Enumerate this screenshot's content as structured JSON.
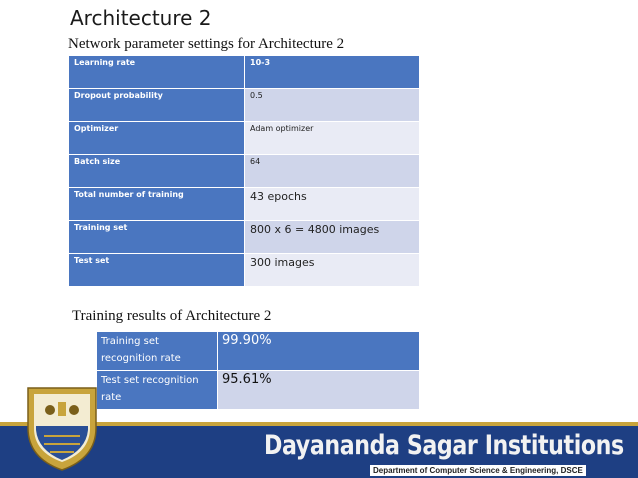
{
  "slide": {
    "title": "Architecture 2",
    "subtitle": "Network parameter settings for Architecture 2",
    "results_title": "Training results of Architecture 2"
  },
  "params": [
    {
      "label": "Learning rate",
      "value": "10-3"
    },
    {
      "label": "Dropout probability",
      "value": "0.5"
    },
    {
      "label": "Optimizer",
      "value": "Adam optimizer"
    },
    {
      "label": "Batch size",
      "value": "64"
    },
    {
      "label": "Total number of training",
      "value": "43 epochs"
    },
    {
      "label": "Training set",
      "value": "800 x 6 = 4800 images"
    },
    {
      "label": "Test set",
      "value": "300 images"
    }
  ],
  "results": [
    {
      "label": "Training set recognition rate",
      "value": "99.90%"
    },
    {
      "label": "Test set recognition rate",
      "value": "95.61%"
    }
  ],
  "footer": {
    "institution": "Dayananda Sagar Institutions",
    "department": "Department of Computer Science & Engineering, DSCE"
  },
  "colors": {
    "header_blue": "#4a76c0",
    "footer_blue": "#1e3f83",
    "gold": "#c8a43c"
  }
}
